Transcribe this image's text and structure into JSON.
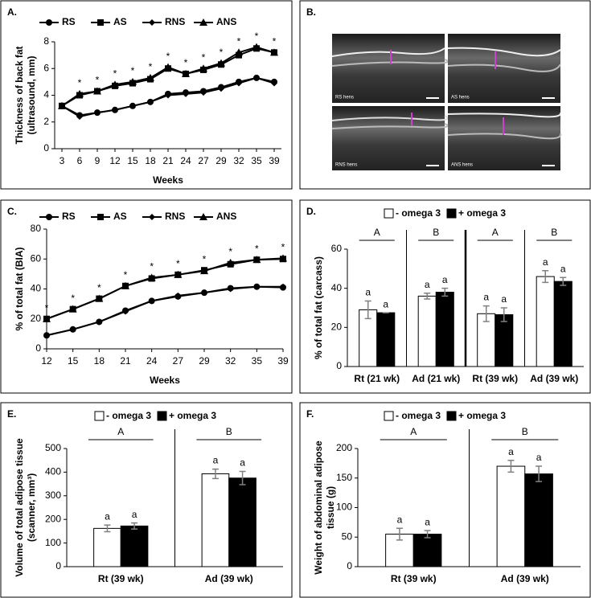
{
  "image_panel": {
    "label": "B.",
    "captions": [
      "RS hens",
      "AS hens",
      "RNS hens",
      "ANS hens"
    ]
  },
  "chart_data": [
    {
      "type": "line",
      "label": "A.",
      "categories": [
        "3",
        "6",
        "9",
        "12",
        "15",
        "18",
        "21",
        "24",
        "27",
        "29",
        "32",
        "35",
        "39"
      ],
      "series": [
        {
          "name": "RS",
          "color": "#000000",
          "marker": "circle",
          "values": [
            3.2,
            2.5,
            2.7,
            2.9,
            3.2,
            3.5,
            4.1,
            4.2,
            4.3,
            4.6,
            5.0,
            5.3,
            5.0
          ]
        },
        {
          "name": "AS",
          "color": "#000000",
          "marker": "square",
          "values": [
            3.2,
            4.0,
            4.3,
            4.7,
            4.9,
            5.2,
            6.0,
            5.6,
            5.9,
            6.3,
            7.0,
            7.5,
            7.2
          ]
        },
        {
          "name": "RNS",
          "color": "#000000",
          "marker": "diamond",
          "values": [
            3.2,
            2.4,
            2.7,
            2.9,
            3.2,
            3.5,
            4.0,
            4.1,
            4.2,
            4.5,
            4.9,
            5.3,
            4.9
          ]
        },
        {
          "name": "ANS",
          "color": "#000000",
          "marker": "triangle",
          "values": [
            3.2,
            4.1,
            4.3,
            4.8,
            5.0,
            5.3,
            6.1,
            5.6,
            6.0,
            6.4,
            7.2,
            7.6,
            7.2
          ]
        }
      ],
      "significance": [
        null,
        "*",
        "*",
        "*",
        "*",
        "*",
        "*",
        "*",
        "*",
        "*",
        "*",
        "*",
        "*"
      ],
      "ylabel": [
        "Thickness of back fat",
        "(ultrasound, mm)"
      ],
      "xlabel": "Weeks",
      "ylim": [
        0,
        8
      ],
      "yticks": [
        0,
        2,
        4,
        6,
        8
      ]
    },
    {
      "type": "line",
      "label": "C.",
      "categories": [
        "12",
        "15",
        "18",
        "21",
        "24",
        "27",
        "29",
        "32",
        "35",
        "39"
      ],
      "series": [
        {
          "name": "RS",
          "color": "#000000",
          "marker": "circle",
          "values": [
            9,
            13,
            18,
            25.5,
            32,
            35,
            37.5,
            40.5,
            41.5,
            41
          ]
        },
        {
          "name": "AS",
          "color": "#000000",
          "marker": "square",
          "values": [
            20,
            26.5,
            33.5,
            42,
            47,
            49.5,
            52.5,
            56.5,
            59.5,
            60
          ]
        },
        {
          "name": "RNS",
          "color": "#000000",
          "marker": "diamond",
          "values": [
            9,
            13,
            18,
            25,
            32,
            35.5,
            37.5,
            40,
            41.5,
            41.5
          ]
        },
        {
          "name": "ANS",
          "color": "#000000",
          "marker": "triangle",
          "values": [
            20,
            26.5,
            33.5,
            42,
            47.5,
            49.5,
            52,
            57.5,
            59.5,
            60.5
          ]
        }
      ],
      "significance": [
        "*",
        "*",
        "*",
        "*",
        "*",
        "*",
        "*",
        "*",
        "*",
        "*"
      ],
      "ylabel": [
        "% of total fat (BIA)"
      ],
      "xlabel": "Weeks",
      "ylim": [
        0,
        80
      ],
      "yticks": [
        0,
        20,
        40,
        60,
        80
      ]
    },
    {
      "type": "bar",
      "label": "D.",
      "categories": [
        "Rt (21 wk)",
        "Ad (21 wk)",
        "Rt (39 wk)",
        "Ad (39 wk)"
      ],
      "series": [
        {
          "name": "- omega 3",
          "color": "#ffffff",
          "values": [
            29,
            36,
            27,
            46
          ],
          "errors": [
            4.5,
            1.5,
            4,
            3
          ],
          "letters": [
            "a",
            "a",
            "a",
            "a"
          ]
        },
        {
          "name": "+ omega 3",
          "color": "#000000",
          "values": [
            27.5,
            38,
            26.5,
            43.5
          ],
          "errors": [
            0,
            2,
            3.5,
            2
          ],
          "letters": [
            "a",
            "a",
            "a",
            "a"
          ]
        }
      ],
      "group_letters": [
        "A",
        "B",
        "A",
        "B"
      ],
      "ylabel": [
        "% of total fat (carcass)"
      ],
      "ylim": [
        0,
        60
      ],
      "yticks": [
        0,
        20,
        40,
        60
      ]
    },
    {
      "type": "bar",
      "label": "E.",
      "categories": [
        "Rt (39 wk)",
        "Ad (39 wk)"
      ],
      "series": [
        {
          "name": "- omega 3",
          "color": "#ffffff",
          "values": [
            162,
            393
          ],
          "errors": [
            14,
            20
          ],
          "letters": [
            "a",
            "a"
          ]
        },
        {
          "name": "+ omega 3",
          "color": "#000000",
          "values": [
            172,
            375
          ],
          "errors": [
            13,
            28
          ],
          "letters": [
            "a",
            "a"
          ]
        }
      ],
      "group_letters": [
        "A",
        "B"
      ],
      "ylabel": [
        "Volume of total adipose tissue",
        "(scanner, mm³)"
      ],
      "ylim": [
        0,
        500
      ],
      "yticks": [
        0,
        100,
        200,
        300,
        400,
        500
      ]
    },
    {
      "type": "bar",
      "label": "F.",
      "categories": [
        "Rt (39 wk)",
        "Ad (39 wk)"
      ],
      "series": [
        {
          "name": "- omega 3",
          "color": "#ffffff",
          "values": [
            55,
            170
          ],
          "errors": [
            10,
            10
          ],
          "letters": [
            "a",
            "a"
          ]
        },
        {
          "name": "+ omega 3",
          "color": "#000000",
          "values": [
            55,
            157
          ],
          "errors": [
            6,
            13
          ],
          "letters": [
            "a",
            "a"
          ]
        }
      ],
      "group_letters": [
        "A",
        "B"
      ],
      "ylabel": [
        "Weight of abdominal adipose",
        "tissue (g)"
      ],
      "ylim": [
        0,
        200
      ],
      "yticks": [
        0,
        50,
        100,
        150,
        200
      ]
    }
  ]
}
